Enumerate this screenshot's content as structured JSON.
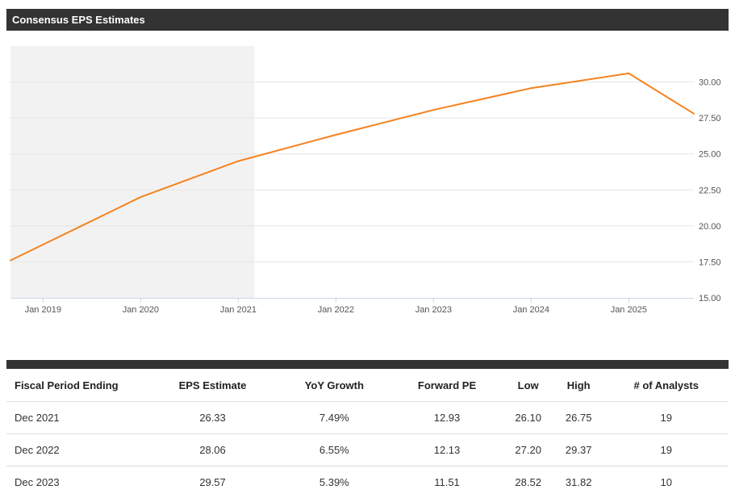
{
  "header": {
    "title": "Consensus EPS Estimates"
  },
  "chart_data": {
    "type": "line",
    "x_start": "2018-09",
    "x_end": "2025-09",
    "shaded_region": {
      "from": "2018-09",
      "to": "2021-03"
    },
    "ylim": [
      15,
      32.5
    ],
    "y_ticks": [
      "30.00",
      "27.50",
      "25.00",
      "22.50",
      "20.00",
      "17.50",
      "15.00"
    ],
    "x_ticks": [
      "Jan 2019",
      "Jan 2020",
      "Jan 2021",
      "Jan 2022",
      "Jan 2023",
      "Jan 2024",
      "Jan 2025"
    ],
    "series": [
      {
        "color": "#f5821f",
        "points": [
          {
            "x": "2018-09",
            "y": 17.6
          },
          {
            "x": "2020-01",
            "y": 22.0
          },
          {
            "x": "2021-01",
            "y": 24.5
          },
          {
            "x": "2022-01",
            "y": 26.33
          },
          {
            "x": "2023-01",
            "y": 28.06
          },
          {
            "x": "2024-01",
            "y": 29.57
          },
          {
            "x": "2025-01",
            "y": 30.6
          },
          {
            "x": "2025-09",
            "y": 27.8
          }
        ]
      }
    ],
    "title": "",
    "xlabel": "",
    "ylabel": "",
    "grid": true
  },
  "table": {
    "columns": [
      "Fiscal Period Ending",
      "EPS Estimate",
      "YoY Growth",
      "Forward PE",
      "Low",
      "High",
      "# of Analysts"
    ],
    "rows": [
      [
        "Dec 2021",
        "26.33",
        "7.49%",
        "12.93",
        "26.10",
        "26.75",
        "19"
      ],
      [
        "Dec 2022",
        "28.06",
        "6.55%",
        "12.13",
        "27.20",
        "29.37",
        "19"
      ],
      [
        "Dec 2023",
        "29.57",
        "5.39%",
        "11.51",
        "28.52",
        "31.82",
        "10"
      ]
    ]
  }
}
